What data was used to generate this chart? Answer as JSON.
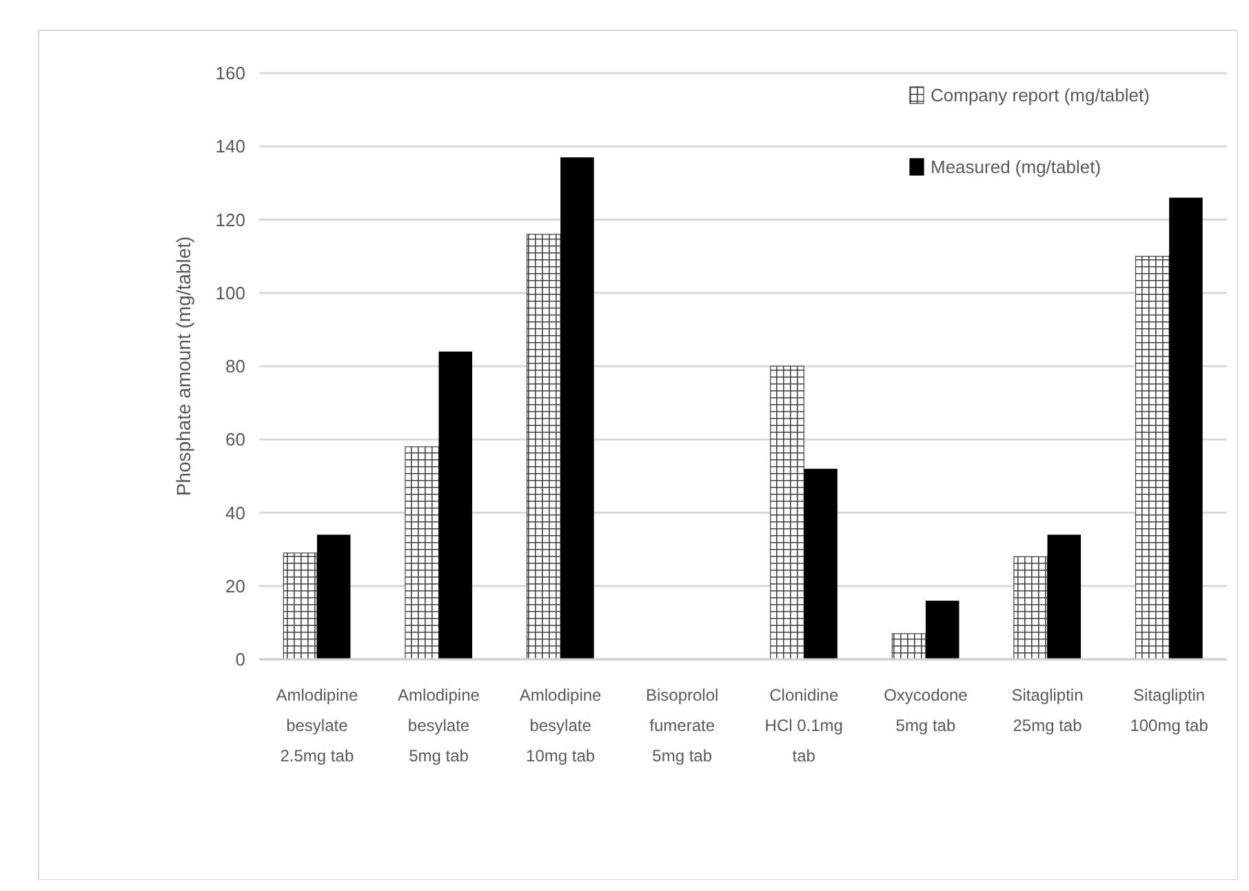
{
  "chart_data": {
    "type": "bar",
    "ylabel": "Phosphate amount  (mg/tablet)",
    "categories": [
      "Amlodipine besylate 2.5mg tab",
      "Amlodipine besylate 5mg tab",
      "Amlodipine besylate 10mg tab",
      "Bisoprolol fumerate 5mg tab",
      "Clonidine HCl 0.1mg tab",
      "Oxycodone 5mg tab",
      "Sitagliptin 25mg tab",
      "Sitagliptin 100mg tab"
    ],
    "series": [
      {
        "name": "Company report (mg/tablet)",
        "color": "#404040",
        "values": [
          29,
          58,
          116,
          0,
          80,
          7,
          28,
          110
        ]
      },
      {
        "name": "Measured (mg/tablet)",
        "color": "#000000",
        "values": [
          34,
          84,
          137,
          0,
          52,
          16,
          34,
          126
        ]
      }
    ],
    "ylim": [
      0,
      160
    ],
    "yticks": [
      0,
      20,
      40,
      60,
      80,
      100,
      120,
      140,
      160
    ],
    "grid": true,
    "legend": "top right"
  }
}
